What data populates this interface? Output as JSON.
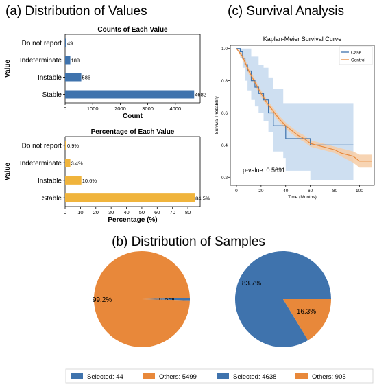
{
  "colors": {
    "blue": "#3f73ad",
    "orange": "#e8883a",
    "yellow": "#f0b43c",
    "ci_blue": "#c6d9ee",
    "ci_orange": "#f6cda6"
  },
  "panels": {
    "a_title": "(a) Distribution of Values",
    "b_title": "(b) Distribution of Samples",
    "c_title": "(c) Survival Analysis"
  },
  "chart_data": [
    {
      "type": "bar",
      "orientation": "horizontal",
      "title": "Counts of Each Value",
      "xlabel": "Count",
      "ylabel": "Value",
      "categories": [
        "Do not report",
        "Indeterminate",
        "Instable",
        "Stable"
      ],
      "values": [
        49,
        188,
        586,
        4682
      ],
      "data_labels": [
        "49",
        "188",
        "586",
        "4682"
      ],
      "xlim": [
        0,
        4900
      ],
      "xticks": [
        0,
        1000,
        2000,
        3000,
        4000
      ],
      "xtick_labels": [
        "0",
        "1000",
        "2000",
        "3000",
        "4000"
      ],
      "grid": false
    },
    {
      "type": "bar",
      "orientation": "horizontal",
      "title": "Percentage of Each Value",
      "xlabel": "Percentage (%)",
      "ylabel": "Value",
      "categories": [
        "Do not report",
        "Indeterminate",
        "Instable",
        "Stable"
      ],
      "values": [
        0.9,
        3.4,
        10.6,
        84.5
      ],
      "data_labels": [
        "0.9%",
        "3.4%",
        "10.6%",
        "84.5%"
      ],
      "xlim": [
        0,
        88
      ],
      "xticks": [
        0,
        10,
        20,
        30,
        40,
        50,
        60,
        70,
        80
      ],
      "xtick_labels": [
        "0",
        "10",
        "20",
        "30",
        "40",
        "50",
        "60",
        "70",
        "80"
      ],
      "grid": false
    },
    {
      "type": "line",
      "title": "Kaplan-Meier Survival Curve",
      "xlabel": "Time (Months)",
      "ylabel": "Survival Probability",
      "xlim": [
        -5,
        112
      ],
      "ylim": [
        0.15,
        1.02
      ],
      "xticks": [
        0,
        20,
        40,
        60,
        80,
        100
      ],
      "xtick_labels": [
        "0",
        "20",
        "40",
        "60",
        "80",
        "100"
      ],
      "yticks": [
        0.2,
        0.4,
        0.6,
        0.8,
        1.0
      ],
      "ytick_labels": [
        "0.2",
        "0.4",
        "0.6",
        "0.8",
        "1.0"
      ],
      "legend_position": "top-right",
      "annotation": "p-value: 0.5691",
      "series": [
        {
          "name": "Case",
          "step": true,
          "x": [
            0,
            3,
            5,
            7,
            9,
            12,
            15,
            18,
            22,
            26,
            30,
            38,
            40,
            60,
            95
          ],
          "y": [
            1.0,
            0.98,
            0.94,
            0.9,
            0.86,
            0.8,
            0.76,
            0.72,
            0.68,
            0.6,
            0.52,
            0.52,
            0.44,
            0.4,
            0.4
          ],
          "ci_upper": [
            1.0,
            1.0,
            1.0,
            1.0,
            1.0,
            0.95,
            0.95,
            0.9,
            0.88,
            0.82,
            0.75,
            0.66,
            0.66,
            0.66,
            0.66
          ],
          "ci_lower": [
            1.0,
            0.94,
            0.88,
            0.8,
            0.74,
            0.68,
            0.64,
            0.6,
            0.55,
            0.48,
            0.36,
            0.32,
            0.24,
            0.18,
            0.18
          ]
        },
        {
          "name": "Control",
          "step": false,
          "x": [
            0,
            5,
            10,
            15,
            20,
            25,
            30,
            35,
            40,
            45,
            50,
            55,
            60,
            65,
            70,
            75,
            80,
            85,
            90,
            95,
            100,
            105,
            110
          ],
          "y": [
            1.0,
            0.95,
            0.86,
            0.79,
            0.72,
            0.66,
            0.61,
            0.56,
            0.52,
            0.49,
            0.46,
            0.44,
            0.41,
            0.4,
            0.39,
            0.38,
            0.37,
            0.35,
            0.34,
            0.33,
            0.3,
            0.3,
            0.3
          ],
          "ci_upper": [
            1.0,
            0.97,
            0.88,
            0.81,
            0.74,
            0.68,
            0.63,
            0.58,
            0.54,
            0.51,
            0.48,
            0.46,
            0.43,
            0.42,
            0.41,
            0.4,
            0.39,
            0.38,
            0.37,
            0.36,
            0.34,
            0.34,
            0.34
          ],
          "ci_lower": [
            1.0,
            0.93,
            0.84,
            0.77,
            0.7,
            0.64,
            0.59,
            0.54,
            0.5,
            0.47,
            0.44,
            0.42,
            0.39,
            0.38,
            0.37,
            0.36,
            0.35,
            0.33,
            0.31,
            0.29,
            0.26,
            0.26,
            0.26
          ]
        }
      ]
    },
    {
      "type": "pie",
      "slices": [
        {
          "label": "Selected: 44",
          "value": 44,
          "pct_label": "0.8%"
        },
        {
          "label": "Others: 5499",
          "value": 5499,
          "pct_label": "99.2%"
        }
      ]
    },
    {
      "type": "pie",
      "slices": [
        {
          "label": "Selected: 4638",
          "value": 4638,
          "pct_label": "83.7%"
        },
        {
          "label": "Others: 905",
          "value": 905,
          "pct_label": "16.3%"
        }
      ]
    }
  ]
}
